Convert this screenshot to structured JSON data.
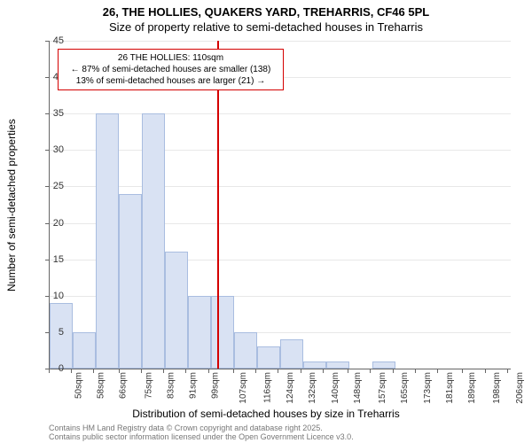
{
  "header": {
    "line1": "26, THE HOLLIES, QUAKERS YARD, TREHARRIS, CF46 5PL",
    "line2": "Size of property relative to semi-detached houses in Treharris"
  },
  "chart": {
    "type": "histogram",
    "ylabel": "Number of semi-detached properties",
    "xlabel": "Distribution of semi-detached houses by size in Treharris",
    "ylim": [
      0,
      45
    ],
    "ytick_step": 5,
    "x_start": 50,
    "x_bin_width": 8.25,
    "x_ticks": [
      50,
      58,
      66,
      75,
      83,
      91,
      99,
      107,
      116,
      124,
      132,
      140,
      148,
      157,
      165,
      173,
      181,
      189,
      198,
      206,
      214
    ],
    "x_tick_unit": "sqm",
    "bars": [
      9,
      5,
      35,
      24,
      35,
      16,
      10,
      10,
      5,
      3,
      4,
      1,
      1,
      0,
      1,
      0,
      0,
      0,
      0,
      0
    ],
    "bar_fill": "#d9e2f3",
    "bar_border": "#a9bde0",
    "grid_color": "#666666",
    "background_color": "#ffffff",
    "marker": {
      "x_value": 110,
      "color": "#d40000"
    },
    "annotation": {
      "line1": "26 THE HOLLIES: 110sqm",
      "line2": "← 87% of semi-detached houses are smaller (138)",
      "line3": "13% of semi-detached houses are larger (21) →"
    },
    "label_fontsize": 12,
    "tick_fontsize": 11
  },
  "footer": {
    "line1": "Contains HM Land Registry data © Crown copyright and database right 2025.",
    "line2": "Contains public sector information licensed under the Open Government Licence v3.0."
  }
}
